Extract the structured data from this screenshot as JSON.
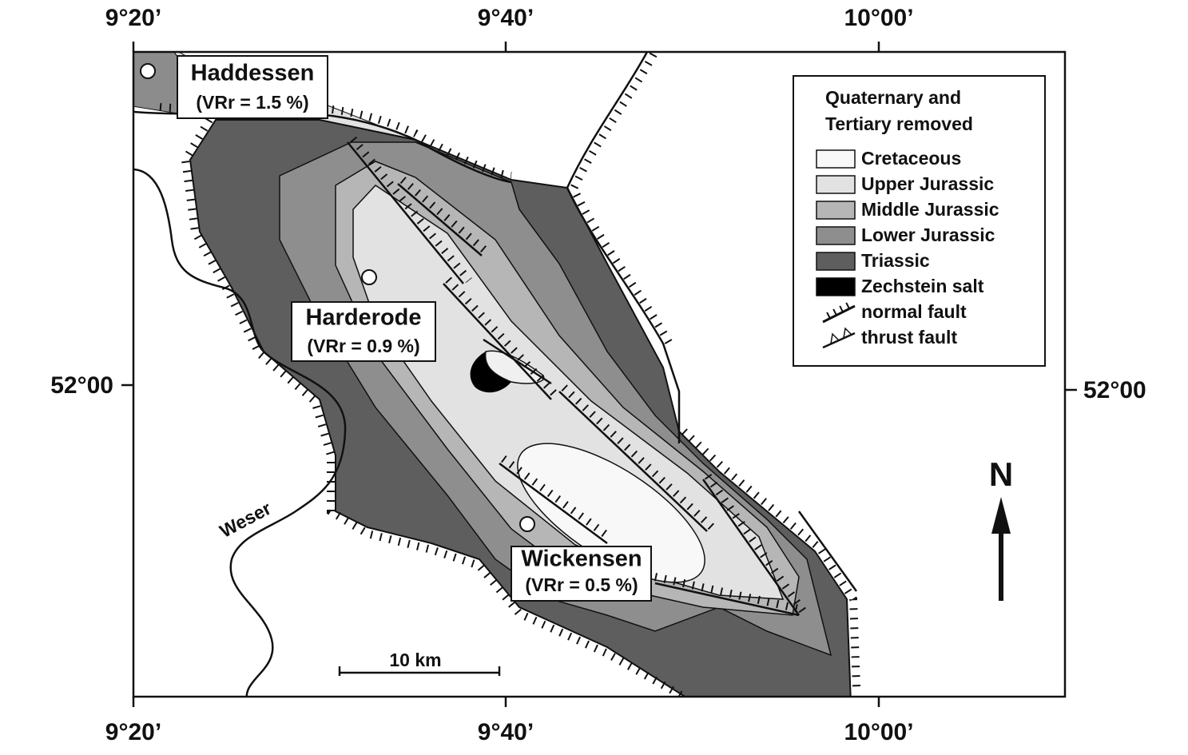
{
  "map": {
    "longitude_labels": [
      "9°20’",
      "9°40’",
      "10°00’"
    ],
    "latitude_labels": [
      "52°00"
    ],
    "locations": [
      {
        "name": "Haddessen",
        "vr": "(VRr = 1.5 %)"
      },
      {
        "name": "Harderode",
        "vr": "(VRr = 0.9 %)"
      },
      {
        "name": "Wickensen",
        "vr": "(VRr = 0.5 %)"
      }
    ],
    "river": "Weser",
    "scale_bar": "10 km",
    "north": "N",
    "legend": {
      "title": [
        "Quaternary and",
        "Tertiary removed"
      ],
      "items": [
        "Cretaceous",
        "Upper Jurassic",
        "Middle Jurassic",
        "Lower Jurassic",
        "Triassic",
        "Zechstein salt",
        "normal fault",
        "thrust fault"
      ]
    }
  }
}
